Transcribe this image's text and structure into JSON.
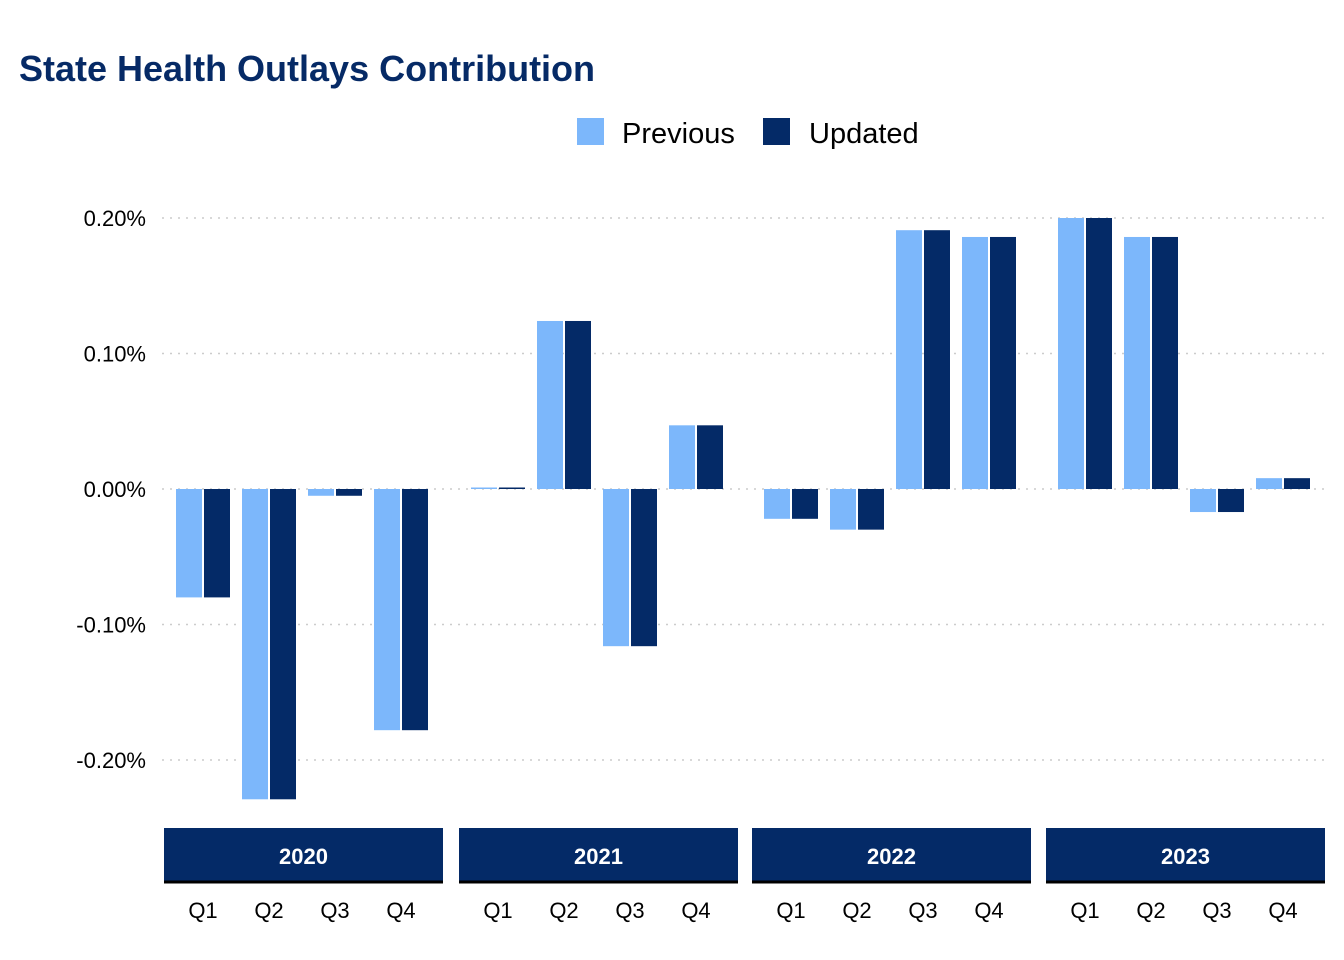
{
  "chart_data": {
    "type": "bar",
    "title": "State Health Outlays Contribution",
    "xlabel": "",
    "ylabel": "",
    "ylim": [
      -0.25,
      0.2
    ],
    "yticks": [
      "-0.20%",
      "-0.10%",
      "0.00%",
      "0.10%",
      "0.20%"
    ],
    "ytick_values": [
      -0.2,
      -0.1,
      0.0,
      0.1,
      0.2
    ],
    "grid": "horizontal-dotted",
    "legend_position": "top",
    "facets": [
      "2020",
      "2021",
      "2022",
      "2023"
    ],
    "categories": [
      "Q1",
      "Q2",
      "Q3",
      "Q4"
    ],
    "series": [
      {
        "name": "Previous",
        "color": "#7cb7fb",
        "values": {
          "2020": [
            -0.08,
            -0.229,
            -0.005,
            -0.178
          ],
          "2021": [
            0.001,
            0.124,
            -0.116,
            0.047
          ],
          "2022": [
            -0.022,
            -0.03,
            0.191,
            0.186
          ],
          "2023": [
            0.2,
            0.186,
            -0.017,
            0.008
          ]
        }
      },
      {
        "name": "Updated",
        "color": "#042a67",
        "values": {
          "2020": [
            -0.08,
            -0.229,
            -0.005,
            -0.178
          ],
          "2021": [
            0.001,
            0.124,
            -0.116,
            0.047
          ],
          "2022": [
            -0.022,
            -0.03,
            0.191,
            0.186
          ],
          "2023": [
            0.2,
            0.186,
            -0.017,
            0.008
          ]
        }
      }
    ]
  },
  "colors": {
    "title": "#062a66",
    "strip": "#042a67",
    "grid": "#cccccc"
  }
}
